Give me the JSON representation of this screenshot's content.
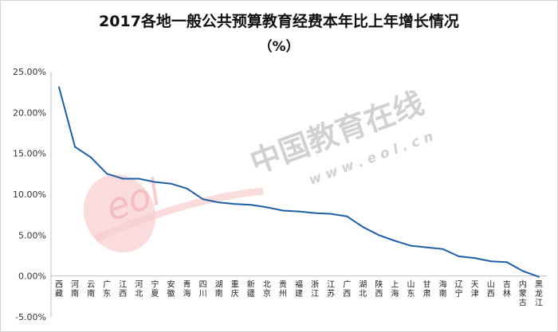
{
  "chart_data": {
    "type": "line",
    "title": "2017各地一般公共预算教育经费本年比上年增长情况",
    "subtitle": "（%）",
    "xlabel": "",
    "ylabel": "",
    "ylim": [
      -5,
      25
    ],
    "yticks": [
      "25.00%",
      "20.00%",
      "15.00%",
      "10.00%",
      "5.00%",
      "0.00%",
      "-5.00%"
    ],
    "grid": false,
    "line_color": "#1f5fa6",
    "categories": [
      "西藏",
      "河南",
      "云南",
      "广东",
      "江西",
      "河北",
      "宁夏",
      "安徽",
      "青海",
      "四川",
      "湖南",
      "重庆",
      "新疆",
      "北京",
      "贵州",
      "福建",
      "浙江",
      "江苏",
      "广西",
      "湖北",
      "陕西",
      "上海",
      "山东",
      "甘肃",
      "海南",
      "辽宁",
      "天津",
      "山西",
      "吉林",
      "内蒙古",
      "黑龙江"
    ],
    "series": [
      {
        "values": [
          23.1,
          15.8,
          14.5,
          12.5,
          11.9,
          11.9,
          11.5,
          11.3,
          10.7,
          9.4,
          9.0,
          8.8,
          8.7,
          8.4,
          8.0,
          7.9,
          7.7,
          7.6,
          7.3,
          6.0,
          5.0,
          4.3,
          3.7,
          3.5,
          3.3,
          2.4,
          2.2,
          1.8,
          1.7,
          0.6,
          -0.1
        ]
      }
    ]
  },
  "watermark": {
    "text": "中国教育在线",
    "url_text": "w w w . e o l . c n",
    "logo_text": "eol",
    "logo_color": "#f4a7ab"
  }
}
